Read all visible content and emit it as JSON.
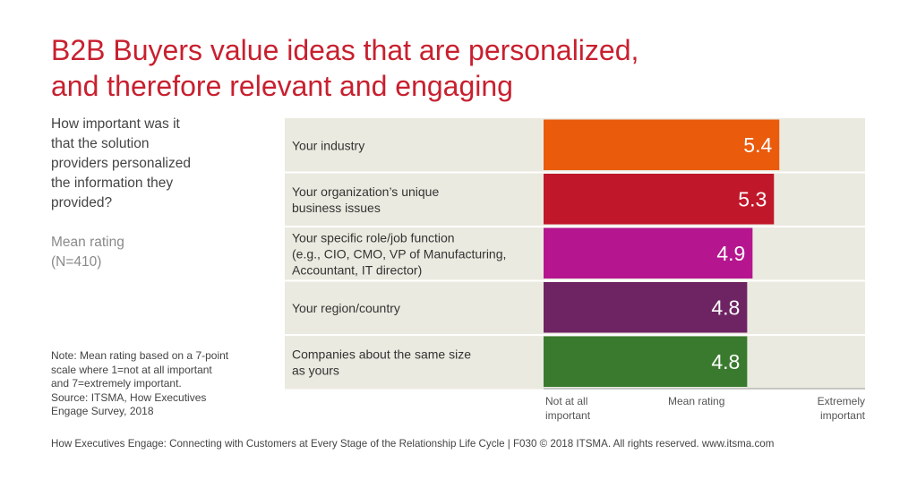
{
  "title": {
    "line1": "B2B Buyers value ideas that are personalized,",
    "line2": "and therefore relevant and engaging"
  },
  "question": [
    "How important was it",
    "that the solution",
    "providers personalized",
    "the information they",
    "provided?"
  ],
  "metric": [
    "Mean rating",
    "(N=410)"
  ],
  "note": [
    "Note: Mean rating based on a 7-point",
    "scale where 1=not at all important",
    "and 7=extremely important.",
    "Source: ITSMA, How Executives",
    "Engage Survey, 2018"
  ],
  "footer": "How Executives Engage: Connecting with Customers at Every Stage of the Relationship Life Cycle | F030 © 2018 ITSMA. All rights reserved. www.itsma.com",
  "axis_labels": {
    "left": [
      "Not at all",
      "important"
    ],
    "center": [
      "Mean rating"
    ],
    "right": [
      "Extremely",
      "important"
    ]
  },
  "chart_data": {
    "type": "bar",
    "orientation": "horizontal",
    "xlim": [
      1,
      7
    ],
    "categories": [
      [
        "Your industry"
      ],
      [
        "Your organization’s unique",
        "business issues"
      ],
      [
        "Your specific role/job function",
        "(e.g., CIO, CMO, VP of Manufacturing,",
        "Accountant, IT director)"
      ],
      [
        "Your region/country"
      ],
      [
        "Companies about the same size",
        "as yours"
      ]
    ],
    "values": [
      5.4,
      5.3,
      4.9,
      4.8,
      4.8
    ],
    "value_labels": [
      "5.4",
      "5.3",
      "4.9",
      "4.8",
      "4.8"
    ],
    "colors": [
      "#ea5b0c",
      "#c0182a",
      "#b5168f",
      "#6e2463",
      "#3a7a2e"
    ],
    "panel_color": "#ebeae0"
  }
}
